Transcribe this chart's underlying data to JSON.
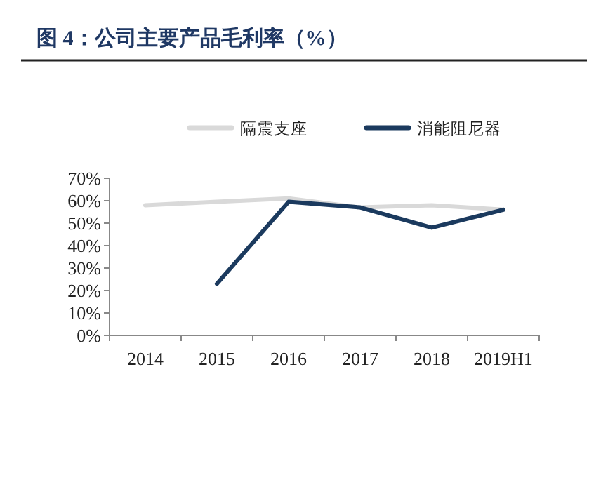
{
  "chart_data": {
    "type": "line",
    "title": "图 4：公司主要产品毛利率（%）",
    "categories": [
      "2014",
      "2015",
      "2016",
      "2017",
      "2018",
      "2019H1"
    ],
    "series": [
      {
        "name": "隔震支座",
        "color": "#d9d9d9",
        "values": [
          58,
          59.5,
          61,
          57,
          58,
          56
        ]
      },
      {
        "name": "消能阻尼器",
        "color": "#1b3a5e",
        "values": [
          null,
          23,
          59.5,
          57,
          48,
          56
        ]
      }
    ],
    "ylim": [
      0,
      70
    ],
    "yticks": [
      {
        "value": 0,
        "label": "0%"
      },
      {
        "value": 10,
        "label": "10%"
      },
      {
        "value": 20,
        "label": "20%"
      },
      {
        "value": 30,
        "label": "30%"
      },
      {
        "value": 40,
        "label": "40%"
      },
      {
        "value": 50,
        "label": "50%"
      },
      {
        "value": 60,
        "label": "60%"
      },
      {
        "value": 70,
        "label": "70%"
      }
    ],
    "grid": false,
    "legend": "top",
    "marker": "none",
    "line_style": "solid"
  }
}
